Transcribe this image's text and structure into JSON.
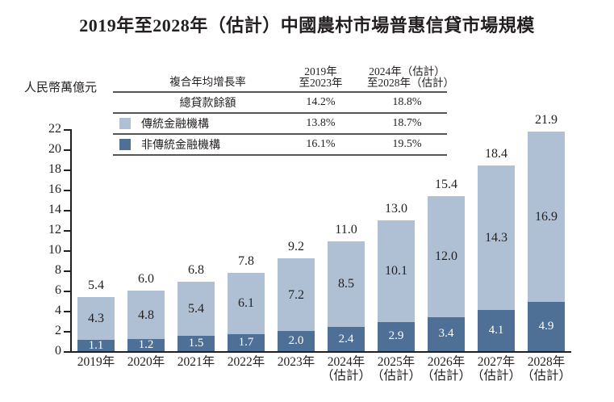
{
  "title": "2019年至2028年（估計）中國農村市場普惠信貸市場規模",
  "colors": {
    "traditional": "#b0c0d4",
    "non_traditional": "#4e6f96",
    "text": "#231f20",
    "table_line": "#555555"
  },
  "cagr_table": {
    "header_label": "複合年均增長率",
    "period1": {
      "line1": "2019年",
      "line2": "至2023年"
    },
    "period2": {
      "line1": "2024年（估計）",
      "line2": "至2028年（估計）"
    },
    "rows": [
      {
        "label": "總貸款餘額",
        "period1": "14.2%",
        "period2": "18.8%"
      },
      {
        "label": "傳統金融機構",
        "period1": "13.8%",
        "period2": "18.7%"
      },
      {
        "label": "非傳統金融機構",
        "period1": "16.1%",
        "period2": "19.5%"
      }
    ]
  },
  "chart_data": {
    "type": "bar",
    "stacked": true,
    "title": "2019年至2028年（估計）中國農村市場普惠信貸市場規模",
    "ylabel": "人民幣萬億元",
    "ylim": [
      0,
      22
    ],
    "ytick_step": 2,
    "grid": false,
    "legend_position": "top-table",
    "categories": [
      "2019年",
      "2020年",
      "2021年",
      "2022年",
      "2023年",
      "2024年",
      "2025年",
      "2026年",
      "2027年",
      "2028年"
    ],
    "category_sublabels": [
      "",
      "",
      "",
      "",
      "",
      "（估計）",
      "（估計）",
      "（估計）",
      "（估計）",
      "（估計）"
    ],
    "series": [
      {
        "name": "非傳統金融機構",
        "color": "#4e6f96",
        "values": [
          1.1,
          1.2,
          1.5,
          1.7,
          2.0,
          2.4,
          2.9,
          3.4,
          4.1,
          4.9
        ]
      },
      {
        "name": "傳統金融機構",
        "color": "#b0c0d4",
        "values": [
          4.3,
          4.8,
          5.4,
          6.1,
          7.2,
          8.5,
          10.1,
          12.0,
          14.3,
          16.9
        ]
      }
    ],
    "totals": [
      5.4,
      6.0,
      6.8,
      7.8,
      9.2,
      11.0,
      13.0,
      15.4,
      18.4,
      21.9
    ]
  }
}
